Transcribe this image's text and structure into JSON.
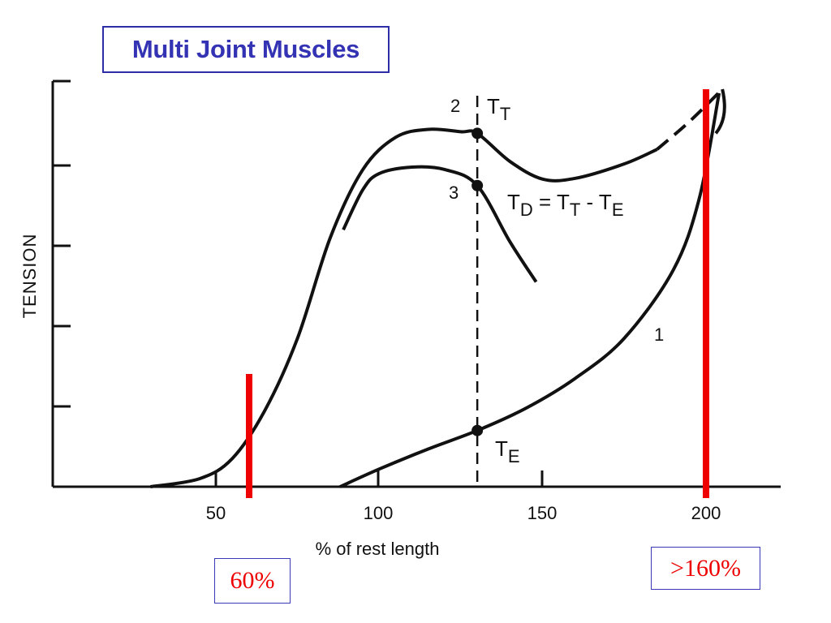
{
  "title": "Multi Joint Muscles",
  "callouts": {
    "left": "60%",
    "right": ">160%"
  },
  "colors": {
    "title": "#3333b3",
    "marker": "#ee0000",
    "ink": "#111111"
  },
  "chart_data": {
    "type": "line",
    "title": "",
    "xlabel": "% of rest length",
    "ylabel": "TENSION",
    "xlim": [
      0,
      225
    ],
    "ylim": [
      0,
      5
    ],
    "x_ticks": [
      50,
      100,
      150,
      200
    ],
    "y_ticks": [
      1,
      2,
      3,
      4,
      5
    ],
    "series": [
      {
        "name": "1",
        "label_x": 187,
        "label_y": 1.9,
        "x": [
          88,
          100,
          115,
          130,
          145,
          160,
          175,
          190,
          198,
          204
        ],
        "y": [
          0,
          0.22,
          0.47,
          0.7,
          0.98,
          1.35,
          1.85,
          2.7,
          3.6,
          4.9
        ],
        "dashed_from_x": []
      },
      {
        "name": "2",
        "label_x": 123,
        "label_y": 4.72,
        "label_text": "T_T",
        "x": [
          30,
          45,
          55,
          65,
          75,
          85,
          95,
          105,
          115,
          125,
          130,
          140,
          150,
          160,
          175,
          185,
          195,
          205
        ],
        "y": [
          0,
          0.1,
          0.35,
          0.95,
          1.85,
          3.1,
          3.95,
          4.35,
          4.45,
          4.42,
          4.4,
          4.05,
          3.83,
          3.84,
          4.02,
          4.2,
          4.55,
          4.95
        ],
        "dashed_from_x": 185
      },
      {
        "name": "3",
        "label_x": 123,
        "label_y": 3.6,
        "label_text": "T_D = T_T - T_E",
        "x": [
          89,
          95,
          100,
          110,
          120,
          130,
          140,
          148
        ],
        "y": [
          3.2,
          3.7,
          3.9,
          3.98,
          3.95,
          3.75,
          3.05,
          2.55
        ]
      }
    ],
    "annotations": {
      "vertical_dashed_x": 130,
      "points": [
        {
          "x": 130,
          "y": 4.4
        },
        {
          "x": 130,
          "y": 3.75
        },
        {
          "x": 130,
          "y": 0.7,
          "label": "T_E"
        }
      ],
      "red_markers_x": [
        60,
        200
      ],
      "red_marker_heights": [
        1.4,
        4.9
      ]
    }
  }
}
